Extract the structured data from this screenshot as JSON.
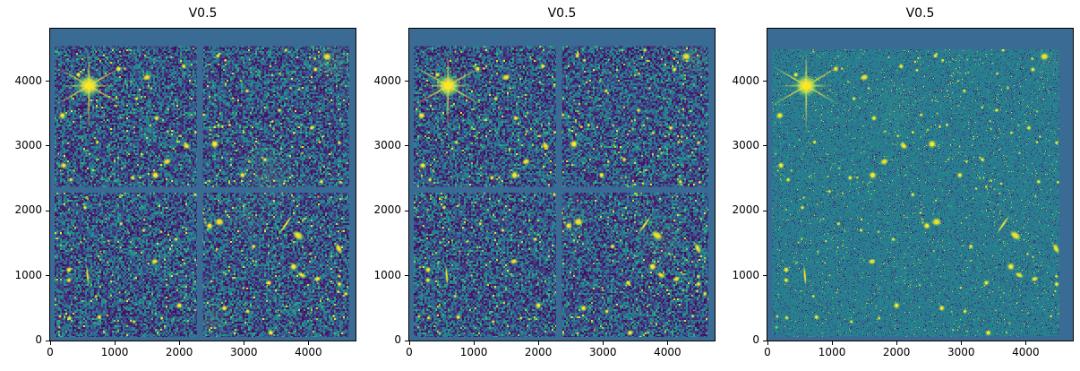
{
  "figure": {
    "background": "#ffffff",
    "subplot_count": 3
  },
  "chart_data": {
    "type": "heatmap",
    "description": "Three-panel matplotlib figure of an astronomical deep-field image rendered with the viridis colormap. Panels 1 and 2 show a 2x2 detector mosaic with blank chip gaps; panel 3 shows the combined smooth mosaic of the same sky. A bright star with eight diffraction spikes sits at upper left; yellow point sources and galaxies are scattered over a noisy blue/teal background.",
    "colormap": {
      "name": "viridis",
      "stops": [
        [
          0,
          "#440154"
        ],
        [
          0.111,
          "#482878"
        ],
        [
          0.222,
          "#3e4989"
        ],
        [
          0.333,
          "#31688e"
        ],
        [
          0.444,
          "#26828e"
        ],
        [
          0.556,
          "#21918c"
        ],
        [
          0.667,
          "#35b779"
        ],
        [
          0.778,
          "#5ec962"
        ],
        [
          0.889,
          "#addc30"
        ],
        [
          1,
          "#fde725"
        ]
      ]
    },
    "frame_background": "#3a6b94",
    "axis": {
      "xticks": [
        0,
        1000,
        2000,
        3000,
        4000
      ],
      "xtick_labels": [
        "0",
        "1000",
        "2000",
        "3000",
        "4000"
      ],
      "yticks": [
        0,
        1000,
        2000,
        3000,
        4000
      ],
      "ytick_labels": [
        "0",
        "1000",
        "2000",
        "3000",
        "4000"
      ],
      "xlim": [
        0,
        4730
      ],
      "ylim": [
        0,
        4810
      ]
    },
    "panels": [
      {
        "title": "V0.5",
        "style": "mosaic",
        "seed": 101
      },
      {
        "title": "V0.5",
        "style": "mosaic",
        "seed": 202
      },
      {
        "title": "V0.5",
        "style": "smooth",
        "seed": 303
      }
    ],
    "content": {
      "mosaic": {
        "x": [
          70,
          4630
        ],
        "y": [
          55,
          4540
        ],
        "gap_x": [
          2272,
          2362
        ],
        "gap_y": [
          2280,
          2370
        ]
      },
      "smooth": {
        "x": [
          70,
          4520
        ],
        "y": [
          60,
          4490
        ]
      }
    },
    "star": {
      "x": 600,
      "y": 3930,
      "core_radius": 8,
      "glow_radius": 13,
      "spikes": [
        [
          90,
          40
        ],
        [
          270,
          56
        ],
        [
          30,
          48
        ],
        [
          210,
          50
        ],
        [
          150,
          46
        ],
        [
          330,
          46
        ],
        [
          0,
          30
        ],
        [
          180,
          30
        ]
      ]
    },
    "sources": [
      [
        "d",
        190,
        3470,
        2.2
      ],
      [
        "d",
        440,
        4100,
        1.6
      ],
      [
        "d",
        1060,
        4190,
        1.8
      ],
      [
        "g",
        1500,
        4060,
        3.5,
        2.5,
        20
      ],
      [
        "d",
        2070,
        4230,
        1.6
      ],
      [
        "d",
        2600,
        4390,
        1.4
      ],
      [
        "g",
        4290,
        4380,
        3.5,
        3.0,
        0
      ],
      [
        "d",
        4110,
        4180,
        1.5
      ],
      [
        "d",
        1340,
        3730,
        1.3
      ],
      [
        "d",
        1650,
        3430,
        1.7
      ],
      [
        "g",
        2110,
        3000,
        3.2,
        2.2,
        -30
      ],
      [
        "d",
        2550,
        3030,
        2.6
      ],
      [
        "g",
        1810,
        2760,
        3.4,
        2.4,
        25
      ],
      [
        "d",
        1630,
        2550,
        2.4
      ],
      [
        "d",
        1280,
        2510,
        1.5
      ],
      [
        "d",
        210,
        2700,
        2.0
      ],
      [
        "d",
        320,
        2480,
        1.4
      ],
      [
        "d",
        2980,
        2550,
        1.8
      ],
      [
        "d",
        3330,
        2790,
        1.4
      ],
      [
        "d",
        4050,
        3280,
        1.5
      ],
      [
        "d",
        730,
        3060,
        1.3
      ],
      [
        "g",
        2620,
        1830,
        3.8,
        3.2,
        0
      ],
      [
        "d",
        2470,
        1770,
        2.2
      ],
      [
        "s",
        3650,
        1790,
        9,
        55
      ],
      [
        "g",
        3840,
        1620,
        5.0,
        3.0,
        -35
      ],
      [
        "g",
        4470,
        1420,
        4.5,
        2.2,
        -65
      ],
      [
        "g",
        3900,
        1010,
        3.6,
        2.0,
        -25
      ],
      [
        "d",
        3770,
        1140,
        2.4
      ],
      [
        "g",
        4140,
        950,
        3.0,
        2.0,
        15
      ],
      [
        "d",
        4480,
        870,
        1.6
      ],
      [
        "d",
        3390,
        890,
        1.7
      ],
      [
        "g",
        1620,
        1220,
        3.0,
        2.2,
        10
      ],
      [
        "s",
        580,
        1000,
        8,
        95
      ],
      [
        "d",
        290,
        1090,
        1.8
      ],
      [
        "d",
        290,
        930,
        1.6
      ],
      [
        "d",
        2000,
        540,
        2.0
      ],
      [
        "d",
        2700,
        500,
        1.9
      ],
      [
        "d",
        760,
        360,
        1.6
      ],
      [
        "d",
        300,
        350,
        1.3
      ],
      [
        "d",
        1300,
        290,
        1.2
      ],
      [
        "d",
        3420,
        120,
        1.9
      ],
      [
        "d",
        3060,
        450,
        1.4
      ],
      [
        "d",
        4580,
        720,
        1.4
      ],
      [
        "d",
        1950,
        1560,
        1.3
      ],
      [
        "d",
        1100,
        1800,
        1.2
      ],
      [
        "d",
        2250,
        2250,
        1.3
      ],
      [
        "d",
        3550,
        3550,
        1.3
      ],
      [
        "d",
        3050,
        3850,
        1.3
      ],
      [
        "d",
        3650,
        4480,
        1.2
      ],
      [
        "d",
        540,
        2050,
        1.3
      ],
      [
        "d",
        960,
        2300,
        1.2
      ],
      [
        "d",
        4200,
        2450,
        1.4
      ],
      [
        "d",
        4480,
        3050,
        1.3
      ],
      [
        "d",
        2380,
        3480,
        1.2
      ],
      [
        "d",
        1450,
        1700,
        1.2
      ],
      [
        "d",
        3150,
        1450,
        1.5
      ]
    ],
    "hazes": [
      [
        0,
        4350,
        4280,
        340,
        0.25
      ],
      [
        0,
        3350,
        2570,
        520,
        0.16
      ],
      [
        0,
        2520,
        300,
        280,
        0.22
      ],
      [
        0,
        3000,
        1900,
        380,
        0.12
      ],
      [
        1,
        4380,
        4350,
        300,
        0.22
      ],
      [
        1,
        3900,
        1550,
        450,
        0.14
      ],
      [
        1,
        2550,
        1850,
        300,
        0.12
      ],
      [
        1,
        700,
        4100,
        250,
        0.1
      ],
      [
        2,
        4350,
        4300,
        300,
        0.12
      ],
      [
        2,
        2000,
        3600,
        500,
        0.08
      ]
    ],
    "faint_source_count": 170,
    "faint_seed": 7
  },
  "colors": {
    "axis_color": "#000000",
    "tick_label_color": "#000000",
    "title_color": "#000000"
  }
}
